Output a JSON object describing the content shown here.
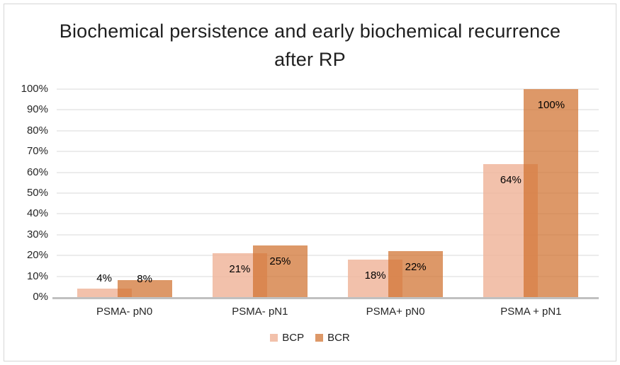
{
  "window": {
    "background": "#ffffff",
    "border_color": "#d6d6d6"
  },
  "chart_data": {
    "type": "bar",
    "title": "Biochemical persistence and early biochemical recurrence after RP",
    "categories": [
      "PSMA- pN0",
      "PSMA- pN1",
      "PSMA+ pN0",
      "PSMA + pN1"
    ],
    "series": [
      {
        "name": "BCP",
        "values": [
          4,
          21,
          18,
          64
        ],
        "labels": [
          "4%",
          "21%",
          "18%",
          "64%"
        ],
        "fill": "rgba(240,182,156,0.85)",
        "legend_color": "#f2c1ab"
      },
      {
        "name": "BCR",
        "values": [
          8,
          25,
          22,
          100
        ],
        "labels": [
          "8%",
          "25%",
          "22%",
          "100%"
        ],
        "fill": "rgba(208,114,48,0.73)",
        "legend_color": "#dd9868"
      }
    ],
    "y_axis": {
      "min": 0,
      "max": 100,
      "step": 10,
      "tick_labels": [
        "0%",
        "10%",
        "20%",
        "30%",
        "40%",
        "50%",
        "60%",
        "70%",
        "80%",
        "90%",
        "100%"
      ]
    },
    "grid": true,
    "legend_position": "bottom",
    "colors": {
      "gridline": "#ececec",
      "axis_line": "#c0c0c0",
      "tick_text": "#262626",
      "data_label_text": "#000000",
      "title_text": "#1f1f1f"
    }
  }
}
